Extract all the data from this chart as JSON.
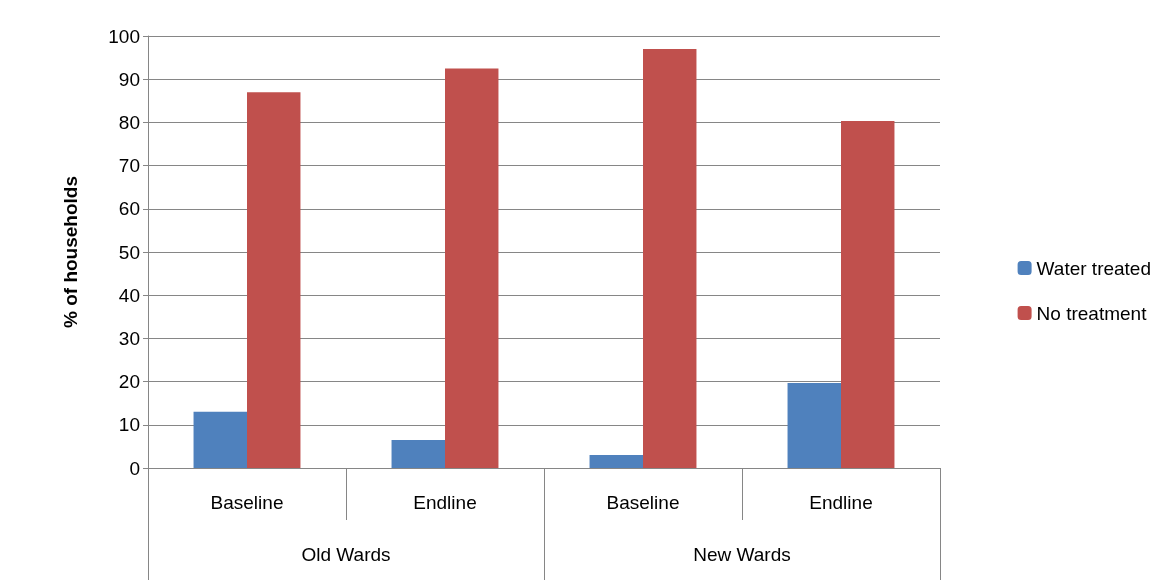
{
  "chart_data": {
    "type": "bar",
    "ylabel": "% of households",
    "categories": [
      "Baseline",
      "Endline",
      "Baseline",
      "Endline"
    ],
    "annotations": [
      "Old Wards",
      "New Wards"
    ],
    "series": [
      {
        "name": "Water treated",
        "color": "#4f81bd",
        "values": [
          13,
          6.5,
          3,
          19.7
        ]
      },
      {
        "name": "No treatment",
        "color": "#c0504d",
        "values": [
          87,
          92.5,
          97,
          80.3
        ]
      }
    ],
    "ylim": [
      0,
      100
    ],
    "yticks": [
      0,
      10,
      20,
      30,
      40,
      50,
      60,
      70,
      80,
      90,
      100
    ],
    "grid": "y",
    "legend": "right"
  }
}
